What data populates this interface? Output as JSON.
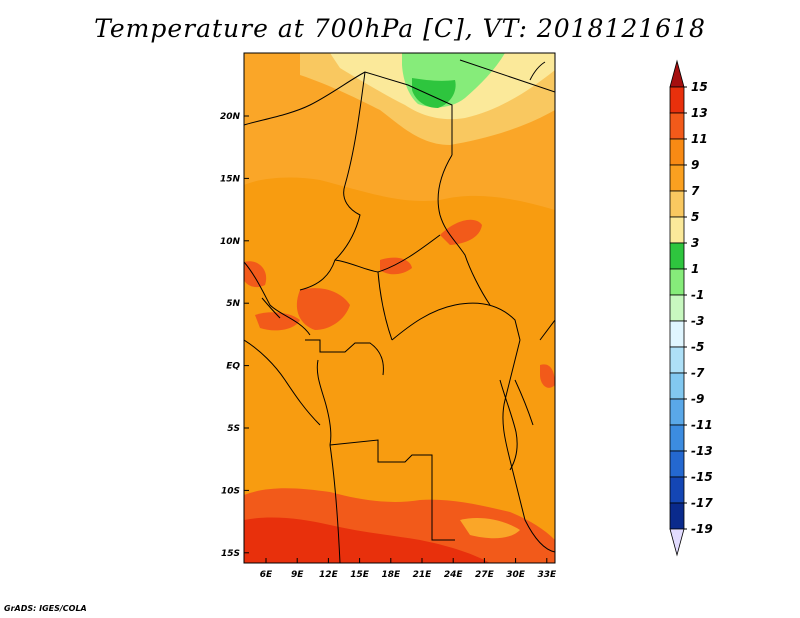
{
  "title": "Temperature at 700hPa [C], VT: 2018121618",
  "credit": "GrADS: IGES/COLA",
  "map": {
    "x_ticks": [
      "6E",
      "9E",
      "12E",
      "15E",
      "18E",
      "21E",
      "24E",
      "27E",
      "30E",
      "33E"
    ],
    "y_ticks": [
      "20N",
      "15N",
      "10N",
      "5N",
      "EQ",
      "5S",
      "10S",
      "15S"
    ]
  },
  "colorbar": {
    "labels": [
      "15",
      "13",
      "11",
      "9",
      "7",
      "5",
      "3",
      "1",
      "-1",
      "-3",
      "-5",
      "-7",
      "-9",
      "-11",
      "-13",
      "-15",
      "-17",
      "-19"
    ],
    "colors": [
      "#a50f0f",
      "#e8300c",
      "#f25a1a",
      "#f88a14",
      "#faa020",
      "#f9c860",
      "#fbe99a",
      "#2ec53e",
      "#86ec7a",
      "#c8f8c0",
      "#e0f6ff",
      "#aee0f7",
      "#82c8f0",
      "#5aa8e8",
      "#3c8ce0",
      "#2468d0",
      "#1446b4",
      "#0a2a8c",
      "#000c5a"
    ],
    "under_color": "#e2dcff"
  }
}
